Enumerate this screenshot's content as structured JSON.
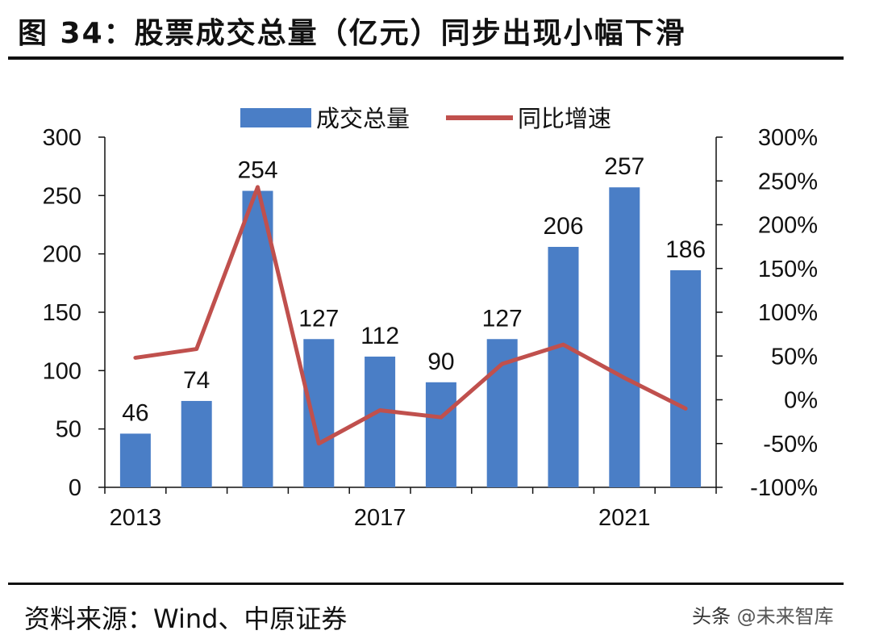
{
  "title": "图 34：股票成交总量（亿元）同步出现小幅下滑",
  "source": "资料来源：Wind、中原证券",
  "watermark": {
    "platform": "头条",
    "account": "@未来智库"
  },
  "colors": {
    "bar": "#4a7ec6",
    "line": "#c0504d",
    "axis": "#111111"
  },
  "chart_data": {
    "type": "bar+line",
    "years": [
      2013,
      2014,
      2015,
      2016,
      2017,
      2018,
      2019,
      2020,
      2021,
      2022
    ],
    "x_tick_labels": [
      "2013",
      "2017",
      "2021"
    ],
    "x_tick_years": [
      2013,
      2017,
      2021
    ],
    "series": [
      {
        "name": "成交总量",
        "type": "bar",
        "axis": "left",
        "values": [
          46,
          74,
          254,
          127,
          112,
          90,
          127,
          206,
          257,
          186
        ],
        "labels": [
          "46",
          "74",
          "254",
          "127",
          "112",
          "90",
          "127",
          "206",
          "257",
          "186"
        ]
      },
      {
        "name": "同比增速",
        "type": "line",
        "axis": "right",
        "values": [
          48,
          58,
          243,
          -50,
          -12,
          -20,
          41,
          63,
          25,
          -10
        ]
      }
    ],
    "left_axis": {
      "min": 0,
      "max": 300,
      "ticks": [
        0,
        50,
        100,
        150,
        200,
        250,
        300
      ],
      "tick_labels": [
        "0",
        "50",
        "100",
        "150",
        "200",
        "250",
        "300"
      ]
    },
    "right_axis": {
      "min": -100,
      "max": 300,
      "ticks": [
        -100,
        -50,
        0,
        50,
        100,
        150,
        200,
        250,
        300
      ],
      "tick_labels": [
        "-100%",
        "-50%",
        "0%",
        "50%",
        "100%",
        "150%",
        "200%",
        "250%",
        "300%"
      ]
    },
    "legend": [
      "成交总量",
      "同比增速"
    ],
    "legend_position": "top-center"
  }
}
